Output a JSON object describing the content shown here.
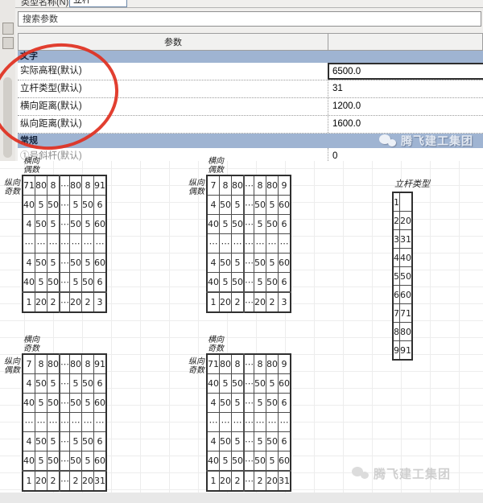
{
  "window": {
    "type_name_label": "类型名称(N):",
    "type_name_value": "立杆",
    "search_placeholder": "搜索参数",
    "param_column_header": "参数",
    "value_column_header": "",
    "sections": [
      {
        "label": "文字",
        "rows": [
          {
            "name": "实际高程(默认)",
            "value": "6500.0"
          },
          {
            "name": "立杆类型(默认)",
            "value": "31"
          },
          {
            "name": "横向距离(默认)",
            "value": "1200.0"
          },
          {
            "name": "纵向距离(默认)",
            "value": "1600.0"
          }
        ]
      },
      {
        "label": "常规",
        "rows": [
          {
            "name": "①号斜杆(默认)",
            "value": "0"
          }
        ]
      }
    ],
    "watermark_text": "腾飞建工集团"
  },
  "colors": {
    "section_bar_blue": "#9fb4d2",
    "annotation_red": "#df2f1e",
    "header_gray": "#f1f1f0"
  },
  "grids": [
    {
      "col_label": "横向偶数",
      "row_label": "纵向奇数",
      "rows": [
        [
          "71",
          "80",
          "8",
          "⋯",
          "80",
          "8",
          "91"
        ],
        [
          "40",
          "5",
          "50",
          "⋯",
          "5",
          "50",
          "6"
        ],
        [
          "4",
          "50",
          "5",
          "⋯",
          "50",
          "5",
          "60"
        ],
        [
          "⋯",
          "⋯",
          "⋯",
          "⋯",
          "⋯",
          "⋯",
          "⋯"
        ],
        [
          "4",
          "50",
          "5",
          "⋯",
          "50",
          "5",
          "60"
        ],
        [
          "40",
          "5",
          "50",
          "⋯",
          "5",
          "50",
          "6"
        ],
        [
          "1",
          "20",
          "2",
          "⋯",
          "20",
          "2",
          "3"
        ]
      ]
    },
    {
      "col_label": "横向偶数",
      "row_label": "纵向偶数",
      "rows": [
        [
          "7",
          "8",
          "80",
          "⋯",
          "8",
          "80",
          "9"
        ],
        [
          "4",
          "50",
          "5",
          "⋯",
          "50",
          "5",
          "60"
        ],
        [
          "40",
          "5",
          "50",
          "⋯",
          "5",
          "50",
          "6"
        ],
        [
          "⋯",
          "⋯",
          "⋯",
          "⋯",
          "⋯",
          "⋯",
          "⋯"
        ],
        [
          "4",
          "50",
          "5",
          "⋯",
          "50",
          "5",
          "60"
        ],
        [
          "40",
          "5",
          "50",
          "⋯",
          "5",
          "50",
          "6"
        ],
        [
          "1",
          "20",
          "2",
          "⋯",
          "20",
          "2",
          "3"
        ]
      ]
    },
    {
      "col_label": "横向奇数",
      "row_label": "纵向偶数",
      "rows": [
        [
          "7",
          "8",
          "80",
          "⋯",
          "80",
          "8",
          "91"
        ],
        [
          "4",
          "50",
          "5",
          "⋯",
          "5",
          "50",
          "6"
        ],
        [
          "40",
          "5",
          "50",
          "⋯",
          "50",
          "5",
          "60"
        ],
        [
          "⋯",
          "⋯",
          "⋯",
          "⋯",
          "⋯",
          "⋯",
          "⋯"
        ],
        [
          "4",
          "50",
          "5",
          "⋯",
          "5",
          "50",
          "6"
        ],
        [
          "40",
          "5",
          "50",
          "⋯",
          "50",
          "5",
          "60"
        ],
        [
          "1",
          "20",
          "2",
          "⋯",
          "2",
          "20",
          "31"
        ]
      ]
    },
    {
      "col_label": "横向奇数",
      "row_label": "纵向奇数",
      "rows": [
        [
          "71",
          "80",
          "8",
          "⋯",
          "8",
          "80",
          "9"
        ],
        [
          "40",
          "5",
          "50",
          "⋯",
          "50",
          "5",
          "60"
        ],
        [
          "4",
          "50",
          "5",
          "⋯",
          "5",
          "50",
          "6"
        ],
        [
          "⋯",
          "⋯",
          "⋯",
          "⋯",
          "⋯",
          "⋯",
          "⋯"
        ],
        [
          "4",
          "50",
          "5",
          "⋯",
          "5",
          "50",
          "6"
        ],
        [
          "40",
          "5",
          "50",
          "⋯",
          "50",
          "5",
          "60"
        ],
        [
          "1",
          "20",
          "2",
          "⋯",
          "2",
          "20",
          "31"
        ]
      ]
    }
  ],
  "pole_table": {
    "title": "立杆类型",
    "rows": [
      [
        "1",
        ""
      ],
      [
        "2",
        "20"
      ],
      [
        "3",
        "31"
      ],
      [
        "4",
        "40"
      ],
      [
        "5",
        "50"
      ],
      [
        "6",
        "60"
      ],
      [
        "7",
        "71"
      ],
      [
        "8",
        "80"
      ],
      [
        "9",
        "91"
      ]
    ]
  },
  "footer_watermark": "腾飞建工集团"
}
